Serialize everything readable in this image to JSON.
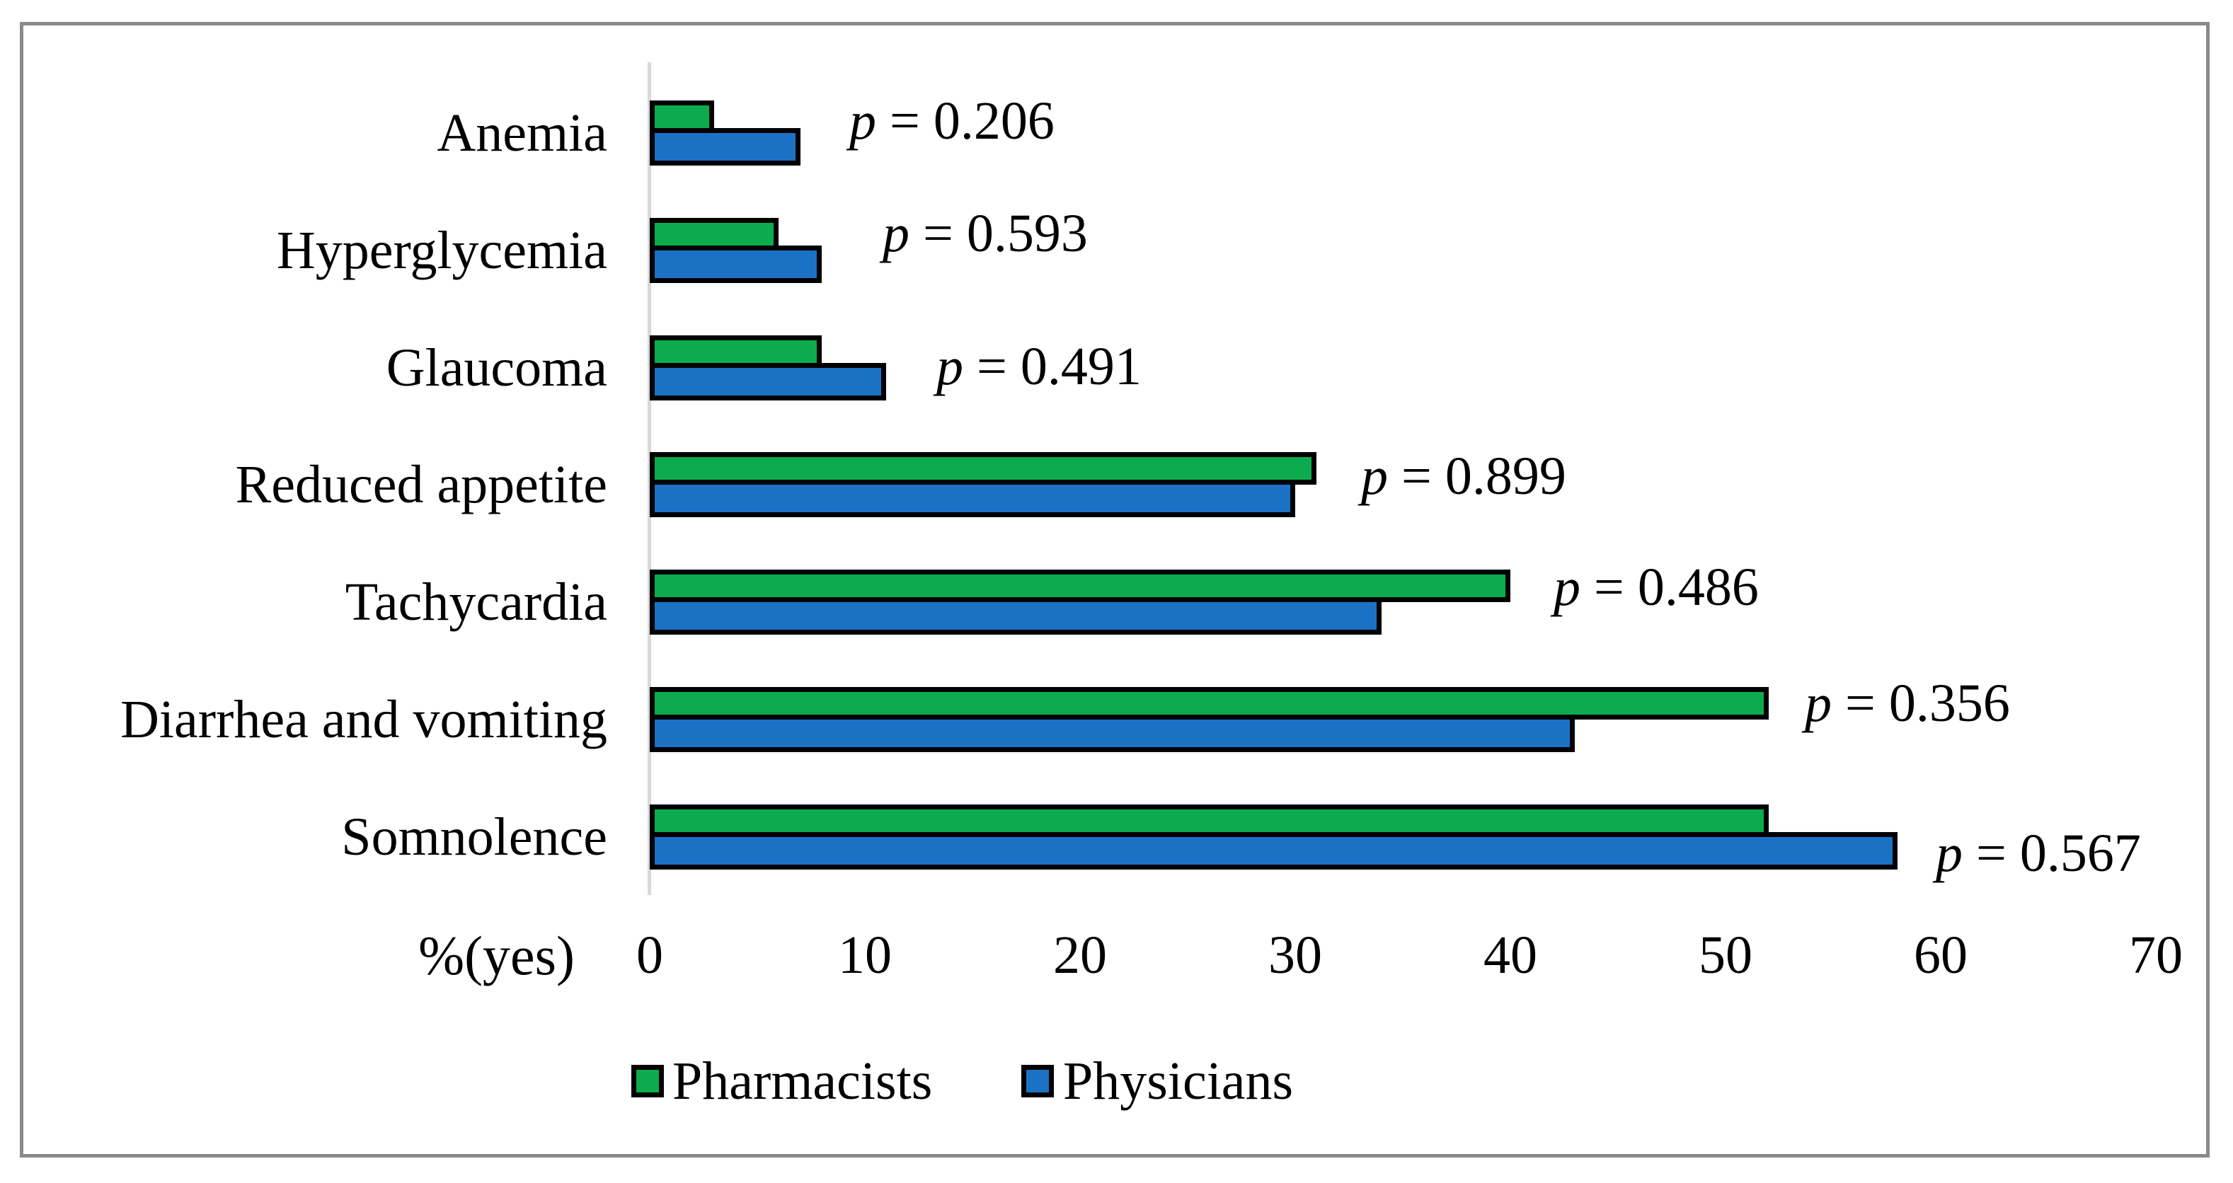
{
  "chart_data": {
    "type": "bar",
    "orientation": "horizontal",
    "title": "",
    "categories": [
      "Anemia",
      "Hyperglycemia",
      "Glaucoma",
      "Reduced appetite",
      "Tachycardia",
      "Diarrhea and vomiting",
      "Somnolence"
    ],
    "series": [
      {
        "name": "Pharmacists",
        "color": "#0cac4e",
        "values": [
          3,
          6,
          8,
          31,
          40,
          52,
          52
        ]
      },
      {
        "name": "Physicians",
        "color": "#1b72c5",
        "values": [
          7,
          8,
          11,
          30,
          34,
          43,
          58
        ]
      }
    ],
    "p_labels": [
      "p = 0.206",
      "p = 0.593",
      "p = 0.491",
      "p = 0.899",
      "p = 0.486",
      "p = 0.356",
      "p = 0.567"
    ],
    "xlabel": "%(yes)",
    "x_ticks": [
      "0",
      "10",
      "20",
      "30",
      "40",
      "50",
      "60",
      "70"
    ],
    "xlim": [
      0,
      70
    ],
    "grid": false,
    "legend_position": "bottom",
    "bar_border_color": "#000000",
    "axis_line_color": "#d9d9d9",
    "frame_color": "#8a8a8a",
    "text_color": "#000000"
  }
}
